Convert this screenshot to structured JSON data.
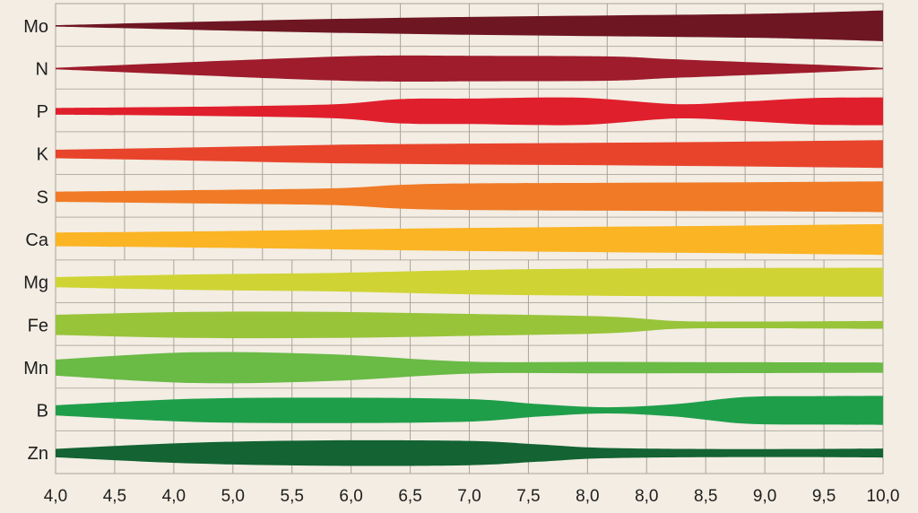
{
  "chart_data": {
    "type": "area",
    "title": "",
    "xlabel": "",
    "ylabel": "",
    "x_tick_labels_upper": [
      "4,0",
      "4,5",
      "5,0",
      "5,5",
      "6,0",
      "6,5",
      "7,0",
      "7,5",
      "8,0",
      "8,5",
      "9,0",
      "9,5",
      "10,0"
    ],
    "x_tick_labels": [
      "4,0",
      "4,5",
      "4,0",
      "5,0",
      "5,5",
      "6,0",
      "6,5",
      "7,0",
      "7,5",
      "8,0",
      "8,0",
      "8,5",
      "9,0",
      "9,5",
      "10,0"
    ],
    "xlim": [
      4.0,
      10.0
    ],
    "series": [
      {
        "name": "Mo",
        "color": "#6e1622",
        "x": [
          4.0,
          5.0,
          6.0,
          7.0,
          8.0,
          9.0,
          9.5,
          10.0
        ],
        "values": [
          0.0,
          0.22,
          0.42,
          0.56,
          0.66,
          0.76,
          0.86,
          1.0
        ]
      },
      {
        "name": "N",
        "color": "#9e1c2c",
        "x": [
          4.0,
          5.0,
          6.0,
          6.5,
          7.0,
          8.0,
          8.5,
          9.5,
          10.0
        ],
        "values": [
          0.0,
          0.4,
          0.76,
          0.84,
          0.82,
          0.78,
          0.58,
          0.22,
          0.0
        ]
      },
      {
        "name": "P",
        "color": "#e01f2c",
        "x": [
          4.0,
          5.0,
          6.0,
          6.5,
          7.0,
          7.8,
          8.5,
          9.0,
          9.5,
          10.0
        ],
        "values": [
          0.18,
          0.26,
          0.42,
          0.78,
          0.82,
          0.88,
          0.44,
          0.62,
          0.86,
          0.9
        ]
      },
      {
        "name": "K",
        "color": "#e8442c",
        "x": [
          4.0,
          5.0,
          6.0,
          7.0,
          8.0,
          9.0,
          10.0
        ],
        "values": [
          0.24,
          0.4,
          0.58,
          0.66,
          0.72,
          0.8,
          0.9
        ]
      },
      {
        "name": "S",
        "color": "#f07a26",
        "x": [
          4.0,
          5.0,
          6.0,
          6.5,
          7.0,
          8.0,
          9.0,
          10.0
        ],
        "values": [
          0.3,
          0.4,
          0.52,
          0.76,
          0.86,
          0.9,
          0.94,
          1.0
        ]
      },
      {
        "name": "Ca",
        "color": "#fbb424",
        "x": [
          4.0,
          5.0,
          6.0,
          7.0,
          8.0,
          9.0,
          10.0
        ],
        "values": [
          0.42,
          0.5,
          0.62,
          0.74,
          0.82,
          0.9,
          1.0
        ]
      },
      {
        "name": "Mg",
        "color": "#cfd434",
        "x": [
          4.0,
          5.0,
          6.0,
          7.0,
          8.0,
          9.0,
          10.0
        ],
        "values": [
          0.3,
          0.48,
          0.58,
          0.78,
          0.88,
          0.92,
          0.94
        ]
      },
      {
        "name": "Fe",
        "color": "#98c43a",
        "x": [
          4.0,
          5.0,
          6.0,
          7.0,
          8.0,
          8.5,
          9.0,
          10.0
        ],
        "values": [
          0.64,
          0.84,
          0.84,
          0.7,
          0.52,
          0.22,
          0.18,
          0.22
        ]
      },
      {
        "name": "Mn",
        "color": "#6aba46",
        "x": [
          4.0,
          5.0,
          6.0,
          7.0,
          8.0,
          9.0,
          10.0
        ],
        "values": [
          0.5,
          1.0,
          0.86,
          0.36,
          0.34,
          0.32,
          0.3
        ]
      },
      {
        "name": "B",
        "color": "#1f9e4a",
        "x": [
          4.0,
          5.0,
          6.0,
          7.0,
          7.5,
          8.0,
          8.5,
          9.0,
          9.5,
          10.0
        ],
        "values": [
          0.3,
          0.74,
          0.82,
          0.72,
          0.38,
          0.16,
          0.38,
          0.86,
          0.92,
          0.94
        ]
      },
      {
        "name": "Zn",
        "color": "#136333",
        "x": [
          4.0,
          5.0,
          6.0,
          7.0,
          7.5,
          8.0,
          9.0,
          10.0
        ],
        "values": [
          0.24,
          0.66,
          0.82,
          0.78,
          0.54,
          0.3,
          0.22,
          0.26
        ]
      }
    ],
    "grid": true,
    "legend": "none"
  }
}
